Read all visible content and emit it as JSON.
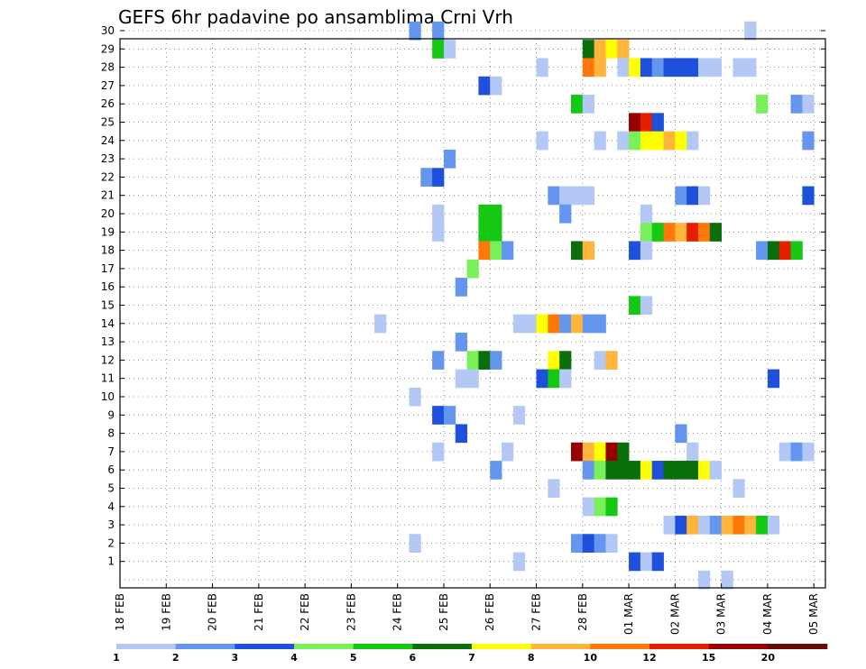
{
  "chart_data": {
    "type": "heatmap",
    "title": "GEFS 6hr padavine po ansamblima Crni Vrh",
    "xlabel": "",
    "ylabel": "",
    "x_tick_labels": [
      "18 FEB",
      "19 FEB",
      "20 FEB",
      "21 FEB",
      "22 FEB",
      "23 FEB",
      "24 FEB",
      "25 FEB",
      "26 FEB",
      "27 FEB",
      "28 FEB",
      "01 MAR",
      "02 MAR",
      "03 MAR",
      "04 MAR",
      "05 MAR"
    ],
    "x_range_6h_steps": [
      0,
      61
    ],
    "y_tick_labels": [
      "1",
      "2",
      "3",
      "4",
      "5",
      "6",
      "7",
      "8",
      "9",
      "10",
      "11",
      "12",
      "13",
      "14",
      "15",
      "16",
      "17",
      "18",
      "19",
      "20",
      "21",
      "22",
      "23",
      "24",
      "25",
      "26",
      "27",
      "28",
      "29",
      "30"
    ],
    "grid": true,
    "legend": "bottom",
    "levels": [
      "1",
      "2",
      "3",
      "4",
      "5",
      "6",
      "7",
      "8",
      "10",
      "12",
      "15",
      "20"
    ],
    "colors": [
      "#b4c8f5",
      "#6496f0",
      "#1e50dc",
      "#78f05a",
      "#14c814",
      "#0a6e0a",
      "#ffff00",
      "#ffb43c",
      "#ff780a",
      "#e61e00",
      "#960000",
      "#640a0a"
    ],
    "cells": [
      [
        30,
        25,
        2
      ],
      [
        30,
        27,
        2
      ],
      [
        30,
        54,
        1
      ],
      [
        29,
        27,
        5
      ],
      [
        29,
        28,
        1
      ],
      [
        29,
        40,
        6
      ],
      [
        29,
        41,
        8
      ],
      [
        29,
        42,
        7
      ],
      [
        29,
        43,
        8
      ],
      [
        28,
        36,
        1
      ],
      [
        28,
        40,
        9
      ],
      [
        28,
        41,
        8
      ],
      [
        28,
        43,
        1
      ],
      [
        28,
        44,
        7
      ],
      [
        28,
        45,
        3
      ],
      [
        28,
        46,
        2
      ],
      [
        28,
        47,
        3
      ],
      [
        28,
        48,
        3
      ],
      [
        28,
        49,
        3
      ],
      [
        28,
        50,
        1
      ],
      [
        28,
        51,
        1
      ],
      [
        28,
        53,
        1
      ],
      [
        28,
        54,
        1
      ],
      [
        27,
        31,
        3
      ],
      [
        27,
        32,
        1
      ],
      [
        26,
        39,
        5
      ],
      [
        26,
        40,
        1
      ],
      [
        26,
        55,
        4
      ],
      [
        26,
        58,
        2
      ],
      [
        26,
        59,
        1
      ],
      [
        25,
        44,
        11
      ],
      [
        25,
        45,
        10
      ],
      [
        25,
        46,
        3
      ],
      [
        24,
        36,
        1
      ],
      [
        24,
        41,
        1
      ],
      [
        24,
        43,
        1
      ],
      [
        24,
        44,
        4
      ],
      [
        24,
        45,
        7
      ],
      [
        24,
        46,
        7
      ],
      [
        24,
        47,
        8
      ],
      [
        24,
        48,
        7
      ],
      [
        24,
        49,
        1
      ],
      [
        24,
        59,
        2
      ],
      [
        23,
        28,
        2
      ],
      [
        22,
        26,
        2
      ],
      [
        22,
        27,
        3
      ],
      [
        21,
        37,
        2
      ],
      [
        21,
        38,
        1
      ],
      [
        21,
        39,
        1
      ],
      [
        21,
        40,
        1
      ],
      [
        21,
        48,
        2
      ],
      [
        21,
        49,
        3
      ],
      [
        21,
        50,
        1
      ],
      [
        21,
        59,
        3
      ],
      [
        20,
        27,
        1
      ],
      [
        20,
        31,
        5
      ],
      [
        20,
        32,
        5
      ],
      [
        20,
        38,
        2
      ],
      [
        20,
        45,
        1
      ],
      [
        19,
        27,
        1
      ],
      [
        19,
        31,
        5
      ],
      [
        19,
        32,
        5
      ],
      [
        19,
        45,
        4
      ],
      [
        19,
        46,
        5
      ],
      [
        19,
        47,
        9
      ],
      [
        19,
        48,
        8
      ],
      [
        19,
        49,
        10
      ],
      [
        19,
        50,
        9
      ],
      [
        19,
        51,
        6
      ],
      [
        18,
        31,
        9
      ],
      [
        18,
        32,
        4
      ],
      [
        18,
        33,
        2
      ],
      [
        18,
        39,
        6
      ],
      [
        18,
        40,
        8
      ],
      [
        18,
        44,
        3
      ],
      [
        18,
        45,
        1
      ],
      [
        18,
        55,
        2
      ],
      [
        18,
        56,
        6
      ],
      [
        18,
        57,
        10
      ],
      [
        18,
        58,
        5
      ],
      [
        17,
        30,
        4
      ],
      [
        16,
        29,
        2
      ],
      [
        15,
        44,
        5
      ],
      [
        15,
        45,
        1
      ],
      [
        14,
        22,
        1
      ],
      [
        14,
        34,
        1
      ],
      [
        14,
        35,
        1
      ],
      [
        14,
        36,
        7
      ],
      [
        14,
        37,
        9
      ],
      [
        14,
        38,
        2
      ],
      [
        14,
        39,
        8
      ],
      [
        14,
        40,
        2
      ],
      [
        14,
        41,
        2
      ],
      [
        13,
        29,
        2
      ],
      [
        12,
        27,
        2
      ],
      [
        12,
        30,
        4
      ],
      [
        12,
        31,
        6
      ],
      [
        12,
        32,
        2
      ],
      [
        12,
        37,
        7
      ],
      [
        12,
        38,
        6
      ],
      [
        12,
        41,
        1
      ],
      [
        12,
        42,
        8
      ],
      [
        11,
        29,
        1
      ],
      [
        11,
        30,
        1
      ],
      [
        11,
        36,
        3
      ],
      [
        11,
        37,
        5
      ],
      [
        11,
        38,
        1
      ],
      [
        11,
        56,
        3
      ],
      [
        10,
        25,
        1
      ],
      [
        9,
        27,
        3
      ],
      [
        9,
        28,
        2
      ],
      [
        9,
        34,
        1
      ],
      [
        8,
        29,
        3
      ],
      [
        8,
        48,
        2
      ],
      [
        7,
        27,
        1
      ],
      [
        7,
        33,
        1
      ],
      [
        7,
        39,
        11
      ],
      [
        7,
        40,
        8
      ],
      [
        7,
        41,
        7
      ],
      [
        7,
        42,
        11
      ],
      [
        7,
        43,
        6
      ],
      [
        7,
        49,
        1
      ],
      [
        7,
        57,
        1
      ],
      [
        7,
        58,
        2
      ],
      [
        7,
        59,
        1
      ],
      [
        6,
        32,
        2
      ],
      [
        6,
        40,
        2
      ],
      [
        6,
        41,
        4
      ],
      [
        6,
        42,
        6
      ],
      [
        6,
        43,
        6
      ],
      [
        6,
        44,
        6
      ],
      [
        6,
        45,
        7
      ],
      [
        6,
        46,
        3
      ],
      [
        6,
        47,
        6
      ],
      [
        6,
        48,
        6
      ],
      [
        6,
        49,
        6
      ],
      [
        6,
        50,
        7
      ],
      [
        6,
        51,
        1
      ],
      [
        5,
        37,
        1
      ],
      [
        5,
        53,
        1
      ],
      [
        4,
        40,
        1
      ],
      [
        4,
        41,
        4
      ],
      [
        4,
        42,
        5
      ],
      [
        3,
        47,
        1
      ],
      [
        3,
        48,
        3
      ],
      [
        3,
        49,
        8
      ],
      [
        3,
        50,
        1
      ],
      [
        3,
        51,
        2
      ],
      [
        3,
        52,
        8
      ],
      [
        3,
        53,
        9
      ],
      [
        3,
        54,
        8
      ],
      [
        3,
        55,
        5
      ],
      [
        3,
        56,
        1
      ],
      [
        2,
        25,
        1
      ],
      [
        2,
        39,
        2
      ],
      [
        2,
        40,
        3
      ],
      [
        2,
        41,
        2
      ],
      [
        2,
        42,
        1
      ],
      [
        1,
        34,
        1
      ],
      [
        1,
        44,
        3
      ],
      [
        1,
        45,
        1
      ],
      [
        1,
        46,
        3
      ],
      [
        0,
        50,
        1
      ],
      [
        0,
        52,
        1
      ]
    ]
  }
}
